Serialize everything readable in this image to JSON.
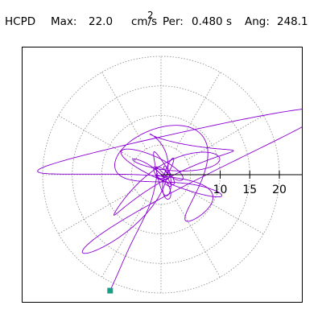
{
  "header": {
    "station": "HCPD",
    "max_label": "Max:",
    "max_value": "22.0",
    "max_units": "cm/s",
    "max_units_exp": "2",
    "per_label": "Per:",
    "per_value": "0.480 s",
    "ang_label": "Ang:",
    "ang_value": "248.1"
  },
  "colors": {
    "trace": "#8a00d4",
    "grid": "#888888",
    "endpoint": "#1a9e84",
    "axis": "#000000"
  },
  "chart_data": {
    "type": "polar-particle-motion",
    "radial_ticks": [
      "10",
      "15",
      "20"
    ],
    "radial_tick_values": [
      10,
      15,
      20
    ],
    "grid_rings": [
      5,
      10,
      15,
      20
    ],
    "grid_spokes_deg": [
      0,
      30,
      60,
      90,
      120,
      150,
      180,
      210,
      240,
      270,
      300,
      330
    ],
    "axis": "positive-x",
    "max_amplitude": 22.0,
    "period_s": 0.48,
    "angle_deg": 248.1,
    "endpoint": {
      "x": -8.6,
      "y": -19.6
    }
  }
}
